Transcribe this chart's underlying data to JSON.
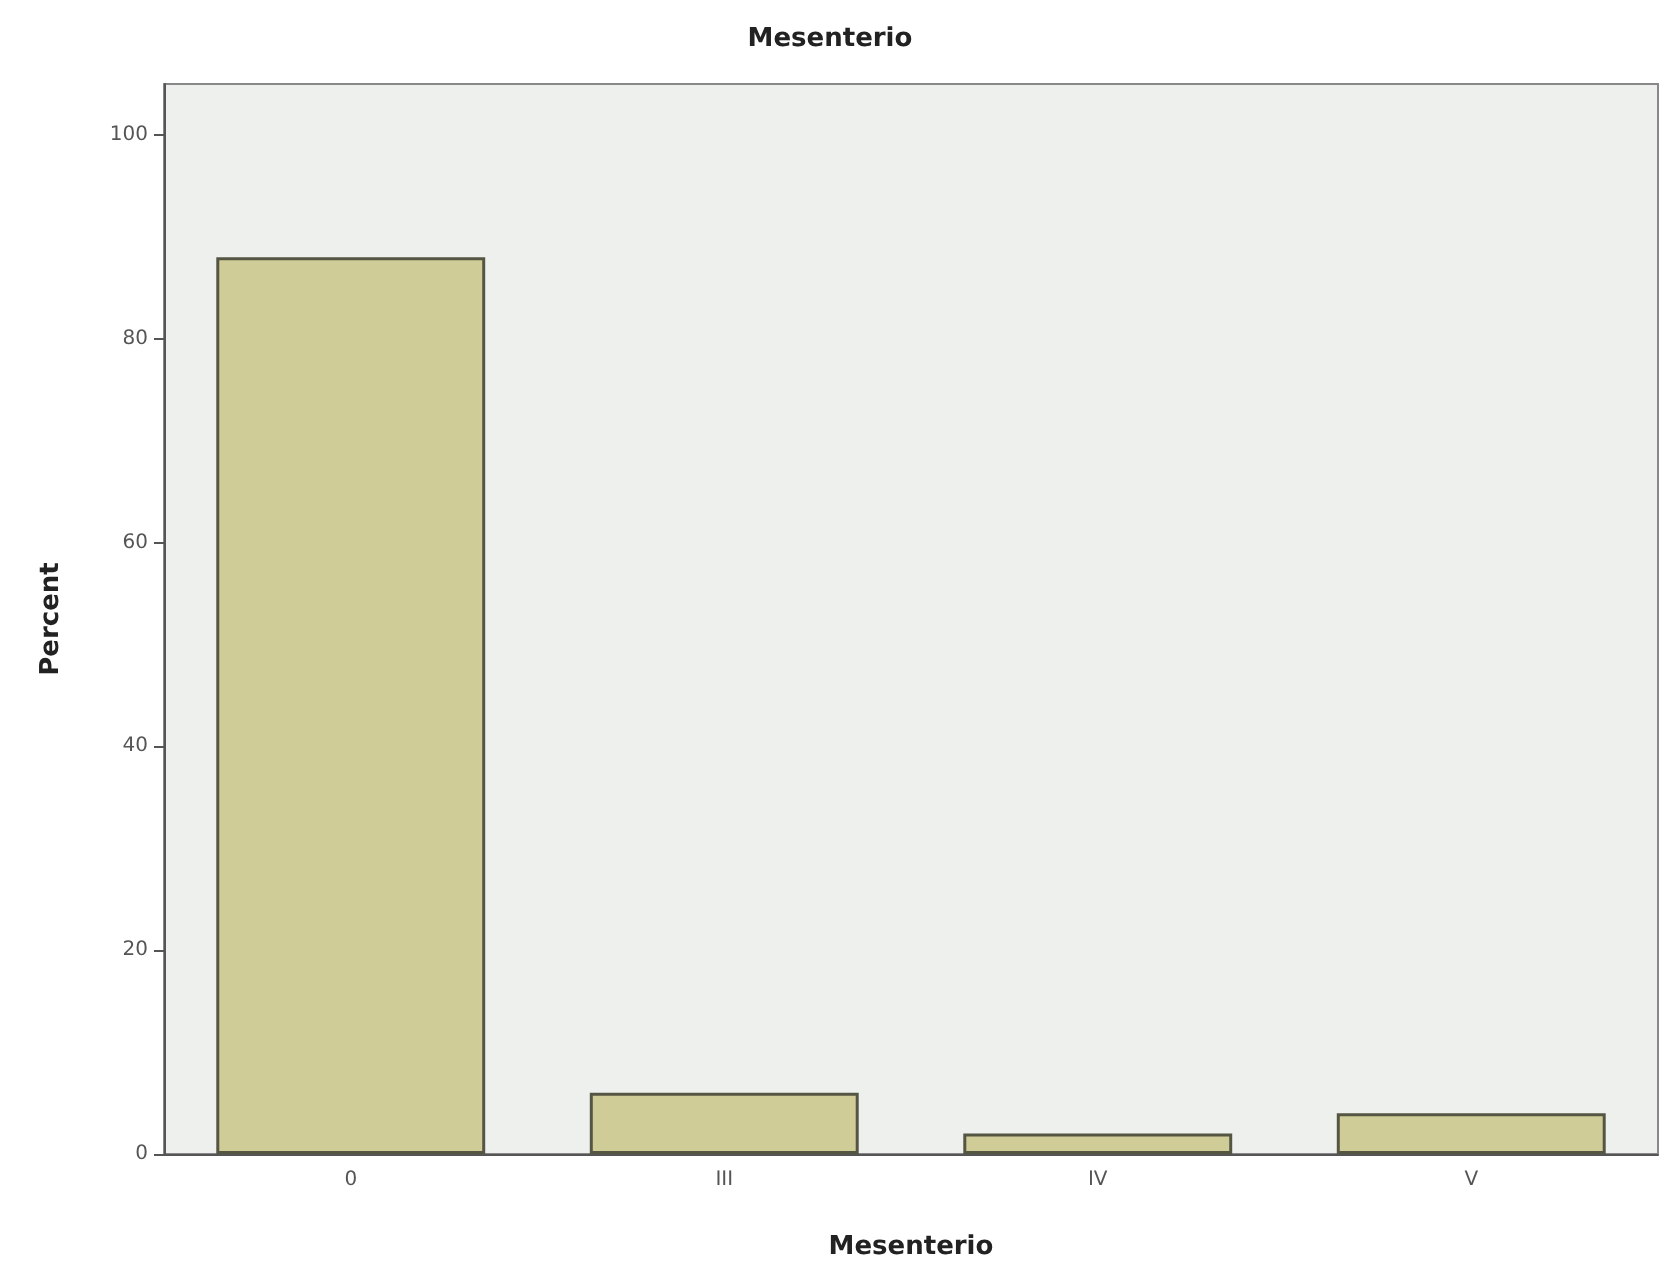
{
  "chart_data": {
    "type": "bar",
    "title": "Mesenterio",
    "xlabel": "Mesenterio",
    "ylabel": "Percent",
    "categories": [
      "0",
      "III",
      "IV",
      "V"
    ],
    "values": [
      88,
      6,
      2,
      4
    ],
    "color": "#d0cc98",
    "ylim": [
      0,
      105
    ],
    "yticks": [
      0,
      20,
      40,
      60,
      80,
      100
    ],
    "grid": false
  }
}
